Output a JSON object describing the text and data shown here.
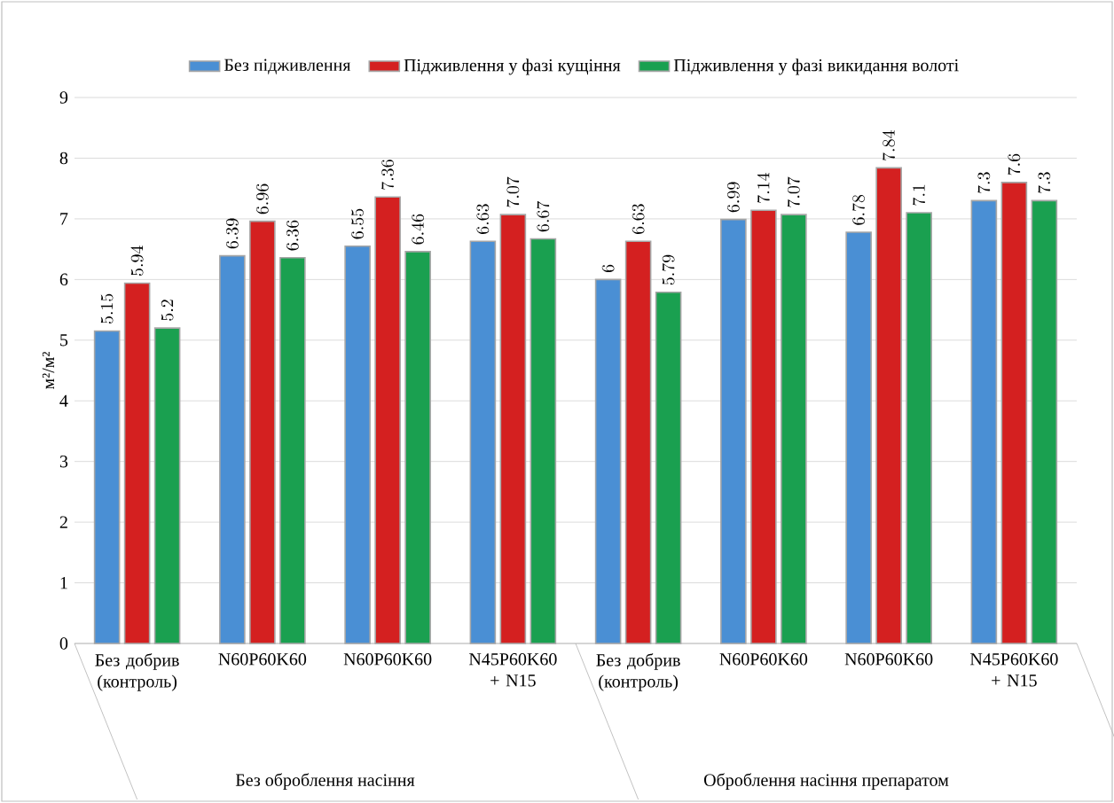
{
  "chart_data": {
    "type": "bar",
    "ylabel": "м²/м²",
    "categories": [
      "Без добрив (контроль)",
      "N60P60K60",
      "N60P60K60",
      "N45P60K60 + N15",
      "Без добрив (контроль)",
      "N60P60K60",
      "N60P60K60",
      "N45P60K60 + N15"
    ],
    "series": [
      {
        "name": "Без підживлення",
        "color": "#4a8fd4",
        "values": [
          5.15,
          6.39,
          6.55,
          6.63,
          6,
          6.99,
          6.78,
          7.3
        ]
      },
      {
        "name": "Підживлення у фазі кущіння",
        "color": "#d42020",
        "values": [
          5.94,
          6.96,
          7.36,
          7.07,
          6.63,
          7.14,
          7.84,
          7.6
        ]
      },
      {
        "name": "Підживлення у фазі викидання волоті",
        "color": "#1aa050",
        "values": [
          5.2,
          6.36,
          6.46,
          6.67,
          5.79,
          7.07,
          7.1,
          7.3
        ]
      }
    ],
    "ylim": [
      0,
      9
    ],
    "yticks": [
      0,
      1,
      2,
      3,
      4,
      5,
      6,
      7,
      8,
      9
    ],
    "grid": "y",
    "legend": "top",
    "data_labels": true,
    "annotations": [
      "Без оброблення насіння",
      "Оброблення насіння препаратом"
    ]
  }
}
